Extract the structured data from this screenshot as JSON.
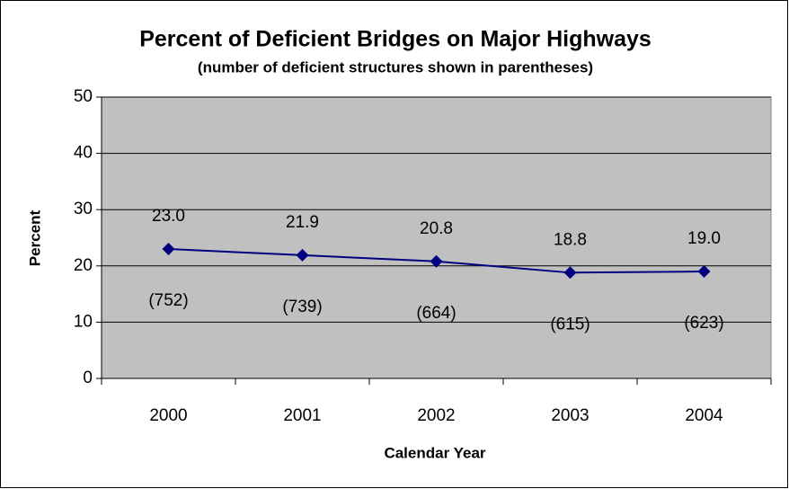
{
  "chart_data": {
    "type": "line",
    "title": "Percent of Deficient Bridges on Major Highways",
    "subtitle": "(number of deficient structures shown in parentheses)",
    "x_label": "Calendar Year",
    "y_label": "Percent",
    "categories": [
      "2000",
      "2001",
      "2002",
      "2003",
      "2004"
    ],
    "series": [
      {
        "name": "Percent",
        "color": "#000080",
        "values": [
          23.0,
          21.9,
          20.8,
          18.8,
          19.0
        ],
        "value_labels": [
          "23.0",
          "21.9",
          "20.8",
          "18.8",
          "19.0"
        ],
        "annotations": [
          "(752)",
          "(739)",
          "(664)",
          "(615)",
          "(623)"
        ]
      }
    ],
    "ylim": [
      0,
      50
    ],
    "yticks": [
      0,
      10,
      20,
      30,
      40,
      50
    ],
    "grid": true,
    "plot_background": "#c0c0c0"
  }
}
